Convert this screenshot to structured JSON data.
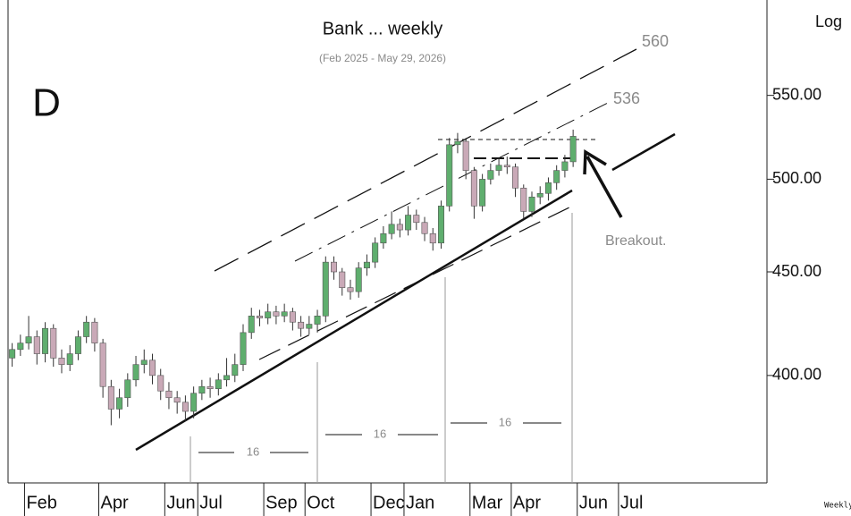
{
  "chart_data": {
    "type": "candlestick",
    "title": "Bank ... weekly",
    "subtitle": "(Feb 2025 - May 29, 2026)",
    "panel_label": "D",
    "scale_label": "Log",
    "period_label": "Weekly",
    "log_scale": true,
    "grid": false,
    "up_color": "#5fae6e",
    "down_color": "#c9a9b7",
    "annotations": {
      "upper_channel": "560",
      "mid_channel": "536",
      "breakout": "Breakout.",
      "cycles": [
        "16",
        "16",
        "16"
      ]
    },
    "ylim": [
      354,
      613
    ],
    "yticks": [
      {
        "value": 400,
        "label": "400.00"
      },
      {
        "value": 450,
        "label": "450.00"
      },
      {
        "value": 500,
        "label": "500.00"
      },
      {
        "value": 550,
        "label": "550.00"
      }
    ],
    "categories": [
      null,
      null,
      "Feb",
      null,
      null,
      null,
      null,
      null,
      null,
      null,
      null,
      "Apr",
      null,
      null,
      null,
      null,
      null,
      null,
      null,
      "Jun",
      null,
      null,
      null,
      "Jul",
      null,
      null,
      null,
      null,
      null,
      null,
      null,
      "Sep",
      null,
      null,
      null,
      null,
      "Oct",
      null,
      null,
      null,
      null,
      null,
      null,
      null,
      "Dec",
      null,
      null,
      null,
      "Jan",
      null,
      null,
      null,
      null,
      null,
      null,
      null,
      "Mar",
      null,
      null,
      null,
      null,
      "Apr",
      null,
      null,
      null,
      null,
      null,
      null,
      null,
      "Jun",
      null,
      null,
      null,
      null,
      "Jul",
      null
    ],
    "open": [
      408,
      412,
      415,
      418,
      410,
      422,
      408,
      405,
      410,
      418,
      425,
      415,
      395,
      385,
      390,
      398,
      405,
      407,
      400,
      393,
      390,
      388,
      384,
      392,
      395,
      394,
      398,
      400,
      405,
      420,
      428,
      427,
      430,
      428,
      430,
      425,
      422,
      424,
      428,
      455,
      450,
      442,
      440,
      452,
      455,
      465,
      470,
      475,
      472,
      480,
      476,
      470,
      465,
      485,
      520,
      522,
      505,
      485,
      500,
      505,
      508,
      507,
      495,
      482,
      490,
      492,
      498,
      505,
      510,
      null,
      null,
      null,
      null,
      null,
      null,
      null
    ],
    "high": [
      415,
      419,
      428,
      421,
      425,
      424,
      412,
      414,
      421,
      428,
      427,
      417,
      398,
      394,
      401,
      409,
      412,
      410,
      403,
      397,
      393,
      391,
      395,
      398,
      399,
      401,
      408,
      410,
      424,
      432,
      431,
      434,
      433,
      434,
      432,
      428,
      428,
      431,
      458,
      458,
      452,
      446,
      455,
      459,
      468,
      474,
      482,
      478,
      485,
      483,
      479,
      473,
      488,
      524,
      527,
      524,
      507,
      503,
      509,
      512,
      513,
      509,
      497,
      493,
      496,
      501,
      508,
      514,
      529,
      null,
      null,
      null,
      null,
      null,
      null,
      null
    ],
    "low": [
      404,
      409,
      412,
      405,
      406,
      404,
      401,
      402,
      407,
      415,
      411,
      390,
      378,
      381,
      386,
      395,
      401,
      396,
      389,
      385,
      383,
      380,
      381,
      389,
      390,
      391,
      395,
      397,
      402,
      417,
      423,
      424,
      424,
      425,
      421,
      418,
      419,
      420,
      425,
      446,
      438,
      436,
      437,
      448,
      452,
      462,
      467,
      468,
      469,
      472,
      466,
      461,
      462,
      482,
      515,
      500,
      478,
      482,
      497,
      502,
      503,
      490,
      478,
      479,
      486,
      488,
      494,
      501,
      507,
      null,
      null,
      null,
      null,
      null,
      null,
      null
    ],
    "close": [
      412,
      415,
      418,
      410,
      422,
      408,
      405,
      410,
      418,
      425,
      415,
      395,
      385,
      390,
      398,
      405,
      407,
      400,
      393,
      390,
      388,
      384,
      392,
      395,
      394,
      398,
      400,
      405,
      420,
      428,
      427,
      430,
      428,
      430,
      425,
      422,
      424,
      428,
      455,
      450,
      442,
      440,
      452,
      455,
      465,
      470,
      475,
      472,
      480,
      476,
      470,
      465,
      485,
      520,
      522,
      505,
      485,
      500,
      505,
      508,
      507,
      495,
      482,
      490,
      492,
      498,
      505,
      510,
      525,
      null,
      null,
      null,
      null,
      null,
      null,
      null
    ]
  }
}
